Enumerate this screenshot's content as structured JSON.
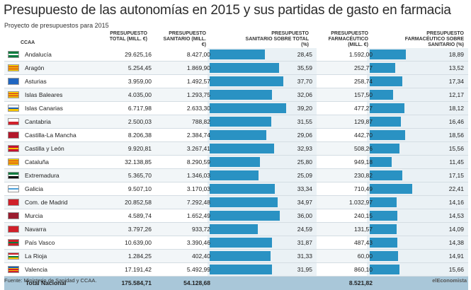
{
  "title": "Presupuesto de las autonomías en 2015 y sus partidas de gasto en farmacia",
  "subtitle": "Proyecto de presupuestos para 2015",
  "headers": {
    "ccaa": "CCAA",
    "total": "PRESUPUESTO TOTAL (MILL. €)",
    "sanitario": "PRESUPUESTO SANITARIO (MILL. €)",
    "sanitario_pct": "PRESUPUESTO SANITARIO SOBRE TOTAL (%)",
    "farmaceutico": "PRESUPUESTO FARMACÉUTICO (MILL. €)",
    "farmaceutico_pct": "PRESUPUESTO FARMACÉUTICO SOBRE SANITARIO (%)"
  },
  "colors": {
    "bar": "#2a92c3",
    "total_row": "#a9c7d9",
    "alt_row": "#f2f6f8",
    "band": "#eaf1f5"
  },
  "chart_data": {
    "type": "table",
    "columns": [
      "CCAA",
      "Presupuesto total (mill. €)",
      "Presupuesto sanitario (mill. €)",
      "Presupuesto sanitario sobre total (%)",
      "Presupuesto farmacéutico (mill. €)",
      "Presupuesto farmacéutico sobre sanitario (%)"
    ],
    "rows": [
      {
        "ccaa": "Andalucía",
        "total": "29.625,16",
        "sanitario": "8.427,00",
        "sanitario_pct": "28,45",
        "farmaceutico": "1.592,00",
        "farmaceutico_pct": "18,89",
        "sanitario_pct_value": 28.45,
        "farmaceutico_pct_value": 18.89,
        "flag": [
          "#0b7a3e",
          "#ffffff",
          "#0b7a3e"
        ]
      },
      {
        "ccaa": "Aragón",
        "total": "5.254,45",
        "sanitario": "1.869,90",
        "sanitario_pct": "35,59",
        "farmaceutico": "252,77",
        "farmaceutico_pct": "13,52",
        "sanitario_pct_value": 35.59,
        "farmaceutico_pct_value": 13.52,
        "flag": [
          "#f5c400",
          "#d0202a",
          "#f5c400",
          "#d0202a",
          "#f5c400"
        ]
      },
      {
        "ccaa": "Asturias",
        "total": "3.959,00",
        "sanitario": "1.492,57",
        "sanitario_pct": "37,70",
        "farmaceutico": "258,74",
        "farmaceutico_pct": "17,34",
        "sanitario_pct_value": 37.7,
        "farmaceutico_pct_value": 17.34,
        "flag": [
          "#1f66c1"
        ]
      },
      {
        "ccaa": "Islas Baleares",
        "total": "4.035,00",
        "sanitario": "1.293,75",
        "sanitario_pct": "32,06",
        "farmaceutico": "157,50",
        "farmaceutico_pct": "12,17",
        "sanitario_pct_value": 32.06,
        "farmaceutico_pct_value": 12.17,
        "flag": [
          "#f5c400",
          "#d0202a",
          "#f5c400",
          "#d0202a",
          "#f5c400"
        ]
      },
      {
        "ccaa": "Islas Canarias",
        "total": "6.717,98",
        "sanitario": "2.633,30",
        "sanitario_pct": "39,20",
        "farmaceutico": "477,27",
        "farmaceutico_pct": "18,12",
        "sanitario_pct_value": 39.2,
        "farmaceutico_pct_value": 18.12,
        "flag": [
          "#ffffff",
          "#1a5db0",
          "#f5c400"
        ]
      },
      {
        "ccaa": "Cantabria",
        "total": "2.500,03",
        "sanitario": "788,82",
        "sanitario_pct": "31,55",
        "farmaceutico": "129,87",
        "farmaceutico_pct": "16,46",
        "sanitario_pct_value": 31.55,
        "farmaceutico_pct_value": 16.46,
        "flag": [
          "#ffffff",
          "#d0202a"
        ]
      },
      {
        "ccaa": "Castilla-La Mancha",
        "total": "8.206,38",
        "sanitario": "2.384,74",
        "sanitario_pct": "29,06",
        "farmaceutico": "442,70",
        "farmaceutico_pct": "18,56",
        "sanitario_pct_value": 29.06,
        "farmaceutico_pct_value": 18.56,
        "flag": [
          "#b3172a"
        ]
      },
      {
        "ccaa": "Castilla y León",
        "total": "9.920,81",
        "sanitario": "3.267,41",
        "sanitario_pct": "32,93",
        "farmaceutico": "508,26",
        "farmaceutico_pct": "15,56",
        "sanitario_pct_value": 32.93,
        "farmaceutico_pct_value": 15.56,
        "flag": [
          "#c4122f",
          "#f5c400",
          "#c4122f"
        ]
      },
      {
        "ccaa": "Cataluña",
        "total": "32.138,85",
        "sanitario": "8.290,59",
        "sanitario_pct": "25,80",
        "farmaceutico": "949,18",
        "farmaceutico_pct": "11,45",
        "sanitario_pct_value": 25.8,
        "farmaceutico_pct_value": 11.45,
        "flag": [
          "#f5c400",
          "#d0202a",
          "#f5c400",
          "#d0202a",
          "#f5c400"
        ]
      },
      {
        "ccaa": "Extremadura",
        "total": "5.365,70",
        "sanitario": "1.346,03",
        "sanitario_pct": "25,09",
        "farmaceutico": "230,82",
        "farmaceutico_pct": "17,15",
        "sanitario_pct_value": 25.09,
        "farmaceutico_pct_value": 17.15,
        "flag": [
          "#0b7a3e",
          "#ffffff",
          "#111111"
        ]
      },
      {
        "ccaa": "Galicia",
        "total": "9.507,10",
        "sanitario": "3.170,03",
        "sanitario_pct": "33,34",
        "farmaceutico": "710,49",
        "farmaceutico_pct": "22,41",
        "sanitario_pct_value": 33.34,
        "farmaceutico_pct_value": 22.41,
        "flag": [
          "#ffffff",
          "#4a9fd8",
          "#ffffff"
        ]
      },
      {
        "ccaa": "Com. de Madrid",
        "total": "20.852,58",
        "sanitario": "7.292,48",
        "sanitario_pct": "34,97",
        "farmaceutico": "1.032,97",
        "farmaceutico_pct": "14,16",
        "sanitario_pct_value": 34.97,
        "farmaceutico_pct_value": 14.16,
        "flag": [
          "#d0202a"
        ]
      },
      {
        "ccaa": "Murcia",
        "total": "4.589,74",
        "sanitario": "1.652,49",
        "sanitario_pct": "36,00",
        "farmaceutico": "240,15",
        "farmaceutico_pct": "14,53",
        "sanitario_pct_value": 36.0,
        "farmaceutico_pct_value": 14.53,
        "flag": [
          "#9a1c2e"
        ]
      },
      {
        "ccaa": "Navarra",
        "total": "3.797,26",
        "sanitario": "933,72",
        "sanitario_pct": "24,59",
        "farmaceutico": "131,57",
        "farmaceutico_pct": "14,09",
        "sanitario_pct_value": 24.59,
        "farmaceutico_pct_value": 14.09,
        "flag": [
          "#d0202a"
        ]
      },
      {
        "ccaa": "País Vasco",
        "total": "10.639,00",
        "sanitario": "3.390,46",
        "sanitario_pct": "31,87",
        "farmaceutico": "487,43",
        "farmaceutico_pct": "14,38",
        "sanitario_pct_value": 31.87,
        "farmaceutico_pct_value": 14.38,
        "flag": [
          "#d0202a",
          "#0b7a3e",
          "#d0202a"
        ]
      },
      {
        "ccaa": "La Rioja",
        "total": "1.284,25",
        "sanitario": "402,40",
        "sanitario_pct": "31,33",
        "farmaceutico": "60,00",
        "farmaceutico_pct": "14,91",
        "sanitario_pct_value": 31.33,
        "farmaceutico_pct_value": 14.91,
        "flag": [
          "#d0202a",
          "#ffffff",
          "#0b7a3e",
          "#f5c400"
        ]
      },
      {
        "ccaa": "Valencia",
        "total": "17.191,42",
        "sanitario": "5.492,99",
        "sanitario_pct": "31,95",
        "farmaceutico": "860,10",
        "farmaceutico_pct": "15,66",
        "sanitario_pct_value": 31.95,
        "farmaceutico_pct_value": 15.66,
        "flag": [
          "#1a5db0",
          "#f5c400",
          "#d0202a",
          "#f5c400",
          "#d0202a"
        ]
      }
    ],
    "total": {
      "ccaa": "Total Nacional",
      "total": "175.584,71",
      "sanitario": "54.128,68",
      "sanitario_pct": "",
      "farmaceutico": "8.521,82",
      "farmaceutico_pct": ""
    }
  },
  "source": "Fuente: Ministerio de Sanidad y CCAA.",
  "brand": "elEconomista"
}
